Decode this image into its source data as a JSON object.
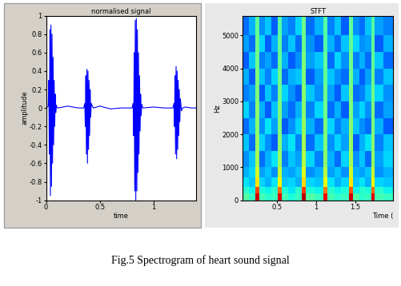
{
  "caption": "Fig.5 Spectrogram of heart sound signal",
  "chart_data": [
    {
      "type": "line",
      "title": "normalised signal",
      "x_label": "time",
      "y_label": "amplitude",
      "color": "#0000ff",
      "x": [
        0,
        0.02,
        0.025,
        0.03,
        0.035,
        0.04,
        0.045,
        0.05,
        0.055,
        0.06,
        0.065,
        0.07,
        0.075,
        0.08,
        0.085,
        0.09,
        0.095,
        0.1,
        0.11,
        0.2,
        0.3,
        0.35,
        0.36,
        0.365,
        0.37,
        0.375,
        0.38,
        0.385,
        0.39,
        0.395,
        0.4,
        0.405,
        0.41,
        0.415,
        0.42,
        0.43,
        0.44,
        0.5,
        0.6,
        0.7,
        0.8,
        0.81,
        0.815,
        0.82,
        0.825,
        0.83,
        0.835,
        0.84,
        0.845,
        0.85,
        0.855,
        0.86,
        0.865,
        0.87,
        0.875,
        0.88,
        0.885,
        0.89,
        0.9,
        1.0,
        1.1,
        1.18,
        1.19,
        1.195,
        1.2,
        1.205,
        1.21,
        1.215,
        1.22,
        1.225,
        1.23,
        1.235,
        1.24,
        1.245,
        1.25,
        1.26,
        1.27,
        1.3,
        1.35,
        1.4
      ],
      "values": [
        0,
        0.02,
        0.3,
        -0.5,
        0.85,
        -0.95,
        0.9,
        -0.85,
        0.8,
        -0.6,
        0.55,
        -0.4,
        0.3,
        -0.2,
        0.15,
        -0.05,
        0.03,
        0.01,
        0,
        0.02,
        0,
        0,
        0.05,
        -0.2,
        0.35,
        -0.5,
        0.42,
        -0.6,
        0.4,
        -0.45,
        0.3,
        -0.3,
        0.2,
        -0.1,
        0.05,
        0.02,
        0,
        0.02,
        -0.01,
        0,
        0,
        0.05,
        -0.3,
        0.6,
        -0.9,
        0.95,
        -1.0,
        0.97,
        -0.9,
        0.85,
        -0.7,
        0.6,
        -0.5,
        0.35,
        -0.25,
        0.15,
        -0.08,
        0.04,
        0,
        0.01,
        0,
        0,
        0.05,
        -0.2,
        0.35,
        -0.5,
        0.45,
        -0.55,
        0.4,
        -0.45,
        0.3,
        -0.3,
        0.2,
        -0.15,
        0.1,
        -0.03,
        0,
        0.01,
        0,
        0
      ],
      "xlim": [
        0,
        1.4
      ],
      "xticks": [
        0,
        0.5,
        1
      ],
      "ylim": [
        -1,
        1
      ],
      "yticks": [
        -1,
        -0.8,
        -0.6,
        -0.4,
        -0.2,
        0,
        0.2,
        0.4,
        0.6,
        0.8,
        1
      ]
    },
    {
      "type": "heatmap",
      "title": "STFT",
      "x_label": "Time (",
      "y_label": "Hz",
      "x_edges": [
        0.06,
        0.14,
        0.22,
        0.27,
        0.35,
        0.43,
        0.51,
        0.56,
        0.64,
        0.73,
        0.82,
        0.87,
        0.98,
        1.09,
        1.14,
        1.23,
        1.32,
        1.42,
        1.47,
        1.55,
        1.62,
        1.7,
        1.75,
        1.86,
        1.98
      ],
      "y_edges": [
        0,
        200,
        400,
        700,
        1000,
        1500,
        2000,
        2500,
        3000,
        3500,
        4000,
        4500,
        5000,
        5600
      ],
      "cells": [
        [
          -33,
          -35,
          -4,
          -34,
          -36,
          -35,
          -5,
          -34,
          -37,
          -35,
          -3,
          -33,
          -35,
          -6,
          -34,
          -36,
          -35,
          -4,
          -33,
          -36,
          -35,
          -5,
          -34,
          -35
        ],
        [
          -36,
          -38,
          -10,
          -37,
          -38,
          -36,
          -12,
          -37,
          -39,
          -36,
          -9,
          -37,
          -38,
          -13,
          -36,
          -38,
          -37,
          -11,
          -38,
          -36,
          -37,
          -12,
          -36,
          -38
        ],
        [
          -39,
          -41,
          -20,
          -40,
          -42,
          -39,
          -21,
          -41,
          -40,
          -42,
          -19,
          -40,
          -41,
          -22,
          -39,
          -42,
          -40,
          -20,
          -41,
          -39,
          -42,
          -21,
          -40,
          -41
        ],
        [
          -42,
          -40,
          -24,
          -43,
          -41,
          -44,
          -25,
          -42,
          -43,
          -41,
          -23,
          -44,
          -42,
          -26,
          -43,
          -41,
          -44,
          -24,
          -42,
          -43,
          -41,
          -25,
          -44,
          -42
        ],
        [
          -44,
          -41,
          -27,
          -46,
          -42,
          -39,
          -28,
          -45,
          -41,
          -43,
          -26,
          -40,
          -45,
          -29,
          -42,
          -46,
          -40,
          -27,
          -44,
          -41,
          -46,
          -28,
          -43,
          -40
        ],
        [
          -41,
          -46,
          -28,
          -40,
          -44,
          -47,
          -29,
          -42,
          -39,
          -45,
          -27,
          -46,
          -41,
          -30,
          -44,
          -40,
          -43,
          -28,
          -47,
          -42,
          -39,
          -29,
          -45,
          -41
        ],
        [
          -46,
          -42,
          -29,
          -44,
          -39,
          -43,
          -30,
          -47,
          -44,
          -40,
          -28,
          -42,
          -46,
          -30,
          -40,
          -45,
          -42,
          -29,
          -41,
          -44,
          -46,
          -30,
          -42,
          -47
        ],
        [
          -40,
          -45,
          -29,
          -42,
          -47,
          -41,
          -30,
          -43,
          -46,
          -42,
          -29,
          -45,
          -40,
          -31,
          -46,
          -42,
          -47,
          -30,
          -43,
          -40,
          -44,
          -30,
          -46,
          -43
        ],
        [
          -45,
          -43,
          -30,
          -47,
          -41,
          -45,
          -31,
          -40,
          -44,
          -47,
          -29,
          -41,
          -44,
          -31,
          -43,
          -47,
          -41,
          -30,
          -46,
          -45,
          -41,
          -31,
          -40,
          -44
        ],
        [
          -42,
          -47,
          -30,
          -41,
          -45,
          -40,
          -31,
          -46,
          -42,
          -41,
          -30,
          -47,
          -43,
          -32,
          -41,
          -44,
          -46,
          -31,
          -42,
          -47,
          -43,
          -31,
          -45,
          -41
        ],
        [
          -47,
          -41,
          -31,
          -45,
          -43,
          -46,
          -32,
          -42,
          -47,
          -44,
          -30,
          -43,
          -41,
          -32,
          -46,
          -40,
          -44,
          -31,
          -45,
          -42,
          -46,
          -32,
          -41,
          -46
        ],
        [
          -43,
          -46,
          -31,
          -40,
          -47,
          -42,
          -32,
          -45,
          -41,
          -46,
          -31,
          -44,
          -47,
          -33,
          -42,
          -46,
          -41,
          -32,
          -40,
          -44,
          -43,
          -32,
          -47,
          -42
        ],
        [
          -46,
          -42,
          -32,
          -44,
          -41,
          -47,
          -33,
          -43,
          -45,
          -40,
          -31,
          -46,
          -42,
          -33,
          -45,
          -41,
          -47,
          -32,
          -44,
          -46,
          -41,
          -33,
          -43,
          -45
        ]
      ],
      "zlim": [
        -60,
        0
      ],
      "xlim": [
        0.06,
        1.98
      ],
      "xticks": [
        0.5,
        1,
        1.5
      ],
      "ylim": [
        0,
        5600
      ],
      "yticks": [
        0,
        1000,
        2000,
        3000,
        4000,
        5000
      ]
    }
  ]
}
